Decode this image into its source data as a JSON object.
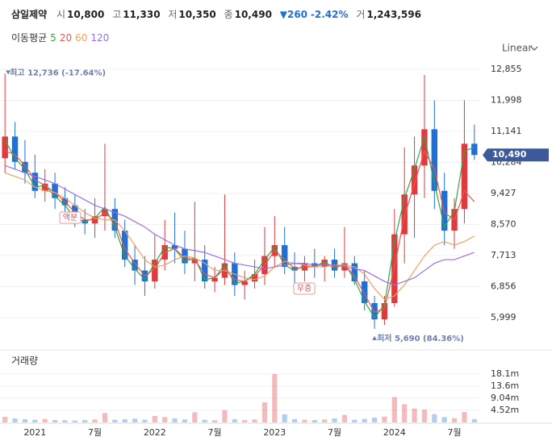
{
  "header": {
    "name": "삼일제약",
    "open_label": "시",
    "open": "10,800",
    "high_label": "고",
    "high": "11,330",
    "low_label": "저",
    "low": "10,350",
    "close_label": "종",
    "close": "10,490",
    "change": "260",
    "change_pct": "-2.42%",
    "volume_label": "거",
    "volume": "1,243,596"
  },
  "ma_label": "이동평균",
  "scale_label": "Linear",
  "volume_title": "거래량",
  "chart_data": {
    "type": "candlestick",
    "categories": [
      null,
      null,
      null,
      "2021",
      null,
      null,
      null,
      null,
      null,
      "7월",
      null,
      null,
      null,
      null,
      null,
      "2022",
      null,
      null,
      null,
      null,
      null,
      "7월",
      null,
      null,
      null,
      null,
      null,
      "2023",
      null,
      null,
      null,
      null,
      null,
      "7월",
      null,
      null,
      null,
      null,
      null,
      "2024",
      null,
      null,
      null,
      null,
      null,
      "7월",
      null,
      null
    ],
    "open": [
      10400,
      11000,
      10300,
      10000,
      9500,
      9700,
      9300,
      9100,
      8700,
      8600,
      8800,
      9000,
      8400,
      7600,
      7300,
      7000,
      7600,
      8000,
      7900,
      7500,
      7600,
      7000,
      7100,
      7500,
      6900,
      7000,
      7200,
      7700,
      8000,
      7400,
      7300,
      7500,
      7400,
      7600,
      7300,
      7500,
      7000,
      6400,
      5950,
      6400,
      8300,
      9400,
      10200,
      11200,
      9500,
      8400,
      9000,
      10800
    ],
    "high": [
      12736,
      11400,
      10900,
      10500,
      10100,
      10000,
      9600,
      9400,
      9000,
      9300,
      10800,
      9300,
      8700,
      8000,
      7700,
      8300,
      8700,
      8900,
      8400,
      9200,
      8000,
      7400,
      9400,
      7800,
      7300,
      7600,
      8500,
      8800,
      8500,
      7800,
      7700,
      7900,
      7700,
      7900,
      8500,
      7700,
      7300,
      6600,
      6600,
      9000,
      10700,
      11000,
      12700,
      12000,
      10000,
      9300,
      12000,
      11330
    ],
    "low": [
      10000,
      10100,
      9700,
      9300,
      9200,
      9000,
      8700,
      8500,
      8300,
      8200,
      8400,
      8200,
      7400,
      6900,
      6600,
      6800,
      7300,
      7500,
      7200,
      7000,
      6800,
      6700,
      6900,
      6600,
      6500,
      6800,
      6900,
      7400,
      7200,
      6900,
      7000,
      7100,
      7000,
      7100,
      7100,
      6900,
      6200,
      5690,
      5800,
      6300,
      7500,
      8200,
      9300,
      9000,
      8000,
      7900,
      8600,
      10350
    ],
    "close": [
      11000,
      10300,
      10000,
      9500,
      9700,
      9300,
      9100,
      8700,
      8600,
      8800,
      9000,
      8400,
      7600,
      7300,
      7000,
      7600,
      8000,
      7900,
      7500,
      7600,
      7000,
      7100,
      7500,
      6900,
      7000,
      7200,
      7700,
      8000,
      7400,
      7300,
      7500,
      7400,
      7600,
      7300,
      7500,
      7000,
      6400,
      5950,
      6400,
      8300,
      9400,
      10200,
      11200,
      9500,
      8400,
      9000,
      10800,
      10490
    ],
    "volume": [
      2100000,
      1500000,
      1200000,
      1000000,
      1300000,
      900000,
      800000,
      700000,
      900000,
      1100000,
      3500000,
      1000000,
      1200000,
      1400000,
      1000000,
      2400000,
      2000000,
      1500000,
      1100000,
      3800000,
      1000000,
      800000,
      4600000,
      1200000,
      900000,
      1100000,
      7500000,
      18100000,
      3000000,
      1200000,
      1000000,
      900000,
      1100000,
      1500000,
      2800000,
      1000000,
      1300000,
      1800000,
      2200000,
      9500000,
      6800000,
      5200000,
      4800000,
      3100000,
      2000000,
      1600000,
      3900000,
      1243596
    ],
    "ma": [
      {
        "name": "5",
        "color": "#2ea84a",
        "values": [
          10900,
          10400,
          10100,
          9600,
          9650,
          9350,
          9100,
          8750,
          8650,
          8750,
          9050,
          8500,
          7700,
          7350,
          7050,
          7500,
          7950,
          7900,
          7550,
          7650,
          7050,
          7100,
          7450,
          6950,
          7000,
          7200,
          7600,
          7950,
          7450,
          7300,
          7450,
          7400,
          7550,
          7350,
          7500,
          7050,
          6450,
          6000,
          6350,
          8100,
          9300,
          10100,
          11000,
          9700,
          8500,
          8950,
          10600,
          10700
        ]
      },
      {
        "name": "20",
        "color": "#e8584f",
        "values": [
          10600,
          10500,
          10200,
          9800,
          9650,
          9450,
          9200,
          8900,
          8700,
          8700,
          8900,
          8650,
          7900,
          7500,
          7150,
          7350,
          7800,
          7900,
          7650,
          7600,
          7200,
          7100,
          7350,
          7050,
          7000,
          7150,
          7450,
          7850,
          7600,
          7350,
          7400,
          7400,
          7500,
          7400,
          7450,
          7150,
          6650,
          6150,
          6250,
          7400,
          8800,
          9700,
          10600,
          10100,
          8900,
          8700,
          9500,
          9200
        ]
      },
      {
        "name": "60",
        "color": "#f0a15a",
        "values": [
          10000,
          9900,
          9800,
          9600,
          9500,
          9450,
          9300,
          9100,
          8900,
          8750,
          8700,
          8700,
          8400,
          8000,
          7600,
          7400,
          7450,
          7600,
          7700,
          7650,
          7500,
          7300,
          7300,
          7200,
          7100,
          7050,
          7150,
          7400,
          7550,
          7500,
          7450,
          7400,
          7400,
          7450,
          7450,
          7400,
          7200,
          6800,
          6500,
          6600,
          6900,
          7300,
          7700,
          8000,
          8100,
          8000,
          8100,
          8250
        ]
      },
      {
        "name": "120",
        "color": "#9b6fe0",
        "values": [
          10200,
          10100,
          10000,
          9900,
          9800,
          9700,
          9550,
          9400,
          9250,
          9100,
          9000,
          8900,
          8800,
          8650,
          8500,
          8300,
          8150,
          8000,
          7900,
          7850,
          7800,
          7700,
          7600,
          7500,
          7450,
          7400,
          7350,
          7400,
          7450,
          7500,
          7500,
          7450,
          7450,
          7450,
          7400,
          7350,
          7300,
          7150,
          7000,
          6900,
          7000,
          7100,
          7300,
          7500,
          7600,
          7600,
          7700,
          7800
        ]
      }
    ],
    "up_color": "#e0393e",
    "down_color": "#1f6fd8",
    "ylim": [
      5198,
      13211
    ],
    "yticks": [
      {
        "value": 12855,
        "label": "12,855"
      },
      {
        "value": 11998,
        "label": "11,998"
      },
      {
        "value": 11141,
        "label": "11,141"
      },
      {
        "value": 10284,
        "label": "10,284"
      },
      {
        "value": 9427,
        "label": "9,427"
      },
      {
        "value": 8570,
        "label": "8,570"
      },
      {
        "value": 7713,
        "label": "7,713"
      },
      {
        "value": 6856,
        "label": "6,856"
      },
      {
        "value": 5999,
        "label": "5,999"
      }
    ],
    "last_price": {
      "value": 10490,
      "label": "10,490"
    },
    "volume_ylim": [
      0,
      24110000
    ],
    "volume_yticks": [
      {
        "value": 18100000,
        "label": "18.1m"
      },
      {
        "value": 13600000,
        "label": "13.6m"
      },
      {
        "value": 9040000,
        "label": "9.04m"
      },
      {
        "value": 4520000,
        "label": "4.52m"
      }
    ],
    "annotations": {
      "high": "최고 12,736 (-17.64%)",
      "low": "최저 5,690 (84.36%)",
      "split": "액분",
      "bonus": "무증"
    },
    "grid": true
  }
}
